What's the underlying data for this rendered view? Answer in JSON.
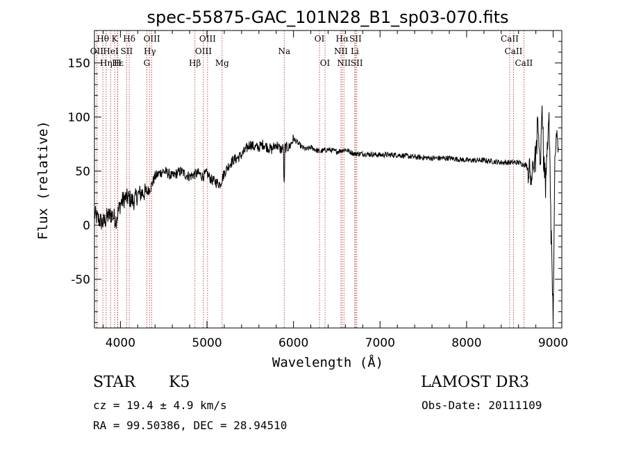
{
  "chart_data": {
    "type": "line",
    "title": "spec-55875-GAC_101N28_B1_sp03-070.fits",
    "xlabel": "Wavelength (Å)",
    "ylabel": "Flux (relative)",
    "xlim": [
      3700,
      9100
    ],
    "ylim": [
      -95,
      180
    ],
    "xticks": [
      4000,
      5000,
      6000,
      7000,
      8000,
      9000
    ],
    "yticks": [
      -50,
      0,
      50,
      100,
      150
    ],
    "spectrum_anchors": {
      "x": [
        3700,
        3750,
        3800,
        3850,
        3900,
        3950,
        4000,
        4050,
        4100,
        4150,
        4200,
        4250,
        4300,
        4350,
        4400,
        4450,
        4500,
        4550,
        4600,
        4650,
        4700,
        4750,
        4800,
        4850,
        4900,
        4950,
        5000,
        5050,
        5100,
        5150,
        5200,
        5250,
        5300,
        5350,
        5400,
        5450,
        5500,
        5550,
        5600,
        5650,
        5700,
        5750,
        5800,
        5850,
        5900,
        5950,
        6000,
        6050,
        6100,
        6150,
        6200,
        6300,
        6400,
        6500,
        6600,
        6700,
        6800,
        7000,
        7200,
        7400,
        7600,
        7800,
        8000,
        8200,
        8400,
        8600,
        8700,
        8750,
        8800,
        8830,
        8850,
        8870,
        8890,
        8910,
        8930,
        8950,
        8970,
        8990,
        9000,
        9020,
        9040,
        9060
      ],
      "y": [
        10,
        5,
        2,
        8,
        10,
        5,
        20,
        25,
        25,
        22,
        28,
        30,
        30,
        35,
        45,
        48,
        50,
        48,
        45,
        48,
        50,
        47,
        45,
        47,
        48,
        45,
        48,
        42,
        40,
        38,
        48,
        55,
        60,
        62,
        65,
        70,
        75,
        72,
        72,
        75,
        72,
        70,
        75,
        70,
        72,
        72,
        80,
        76,
        72,
        70,
        72,
        68,
        70,
        68,
        70,
        66,
        66,
        65,
        65,
        63,
        62,
        62,
        60,
        60,
        58,
        58,
        55,
        50,
        60,
        95,
        50,
        115,
        60,
        40,
        60,
        100,
        20,
        -50,
        -95,
        60,
        85,
        70
      ]
    },
    "lines": [
      {
        "label": "Hθ",
        "wl": 3797,
        "row": 0
      },
      {
        "label": "K",
        "wl": 3934,
        "row": 0
      },
      {
        "label": "Hδ",
        "wl": 4102,
        "row": 0
      },
      {
        "label": "OIII",
        "wl": 4363,
        "row": 0
      },
      {
        "label": "OIII",
        "wl": 5007,
        "row": 0
      },
      {
        "label": "OI",
        "wl": 6300,
        "row": 0
      },
      {
        "label": "Hα",
        "wl": 6563,
        "row": 0
      },
      {
        "label": "SII",
        "wl": 6716,
        "row": 0
      },
      {
        "label": "CaII",
        "wl": 8498,
        "row": 0
      },
      {
        "label": "OII",
        "wl": 3727,
        "row": 1
      },
      {
        "label": "HeI",
        "wl": 3889,
        "row": 1
      },
      {
        "label": "SII",
        "wl": 4072,
        "row": 1
      },
      {
        "label": "Hγ",
        "wl": 4340,
        "row": 1
      },
      {
        "label": "OIII",
        "wl": 4959,
        "row": 1
      },
      {
        "label": "Na",
        "wl": 5893,
        "row": 1
      },
      {
        "label": "NII",
        "wl": 6548,
        "row": 1
      },
      {
        "label": "Li",
        "wl": 6708,
        "row": 1
      },
      {
        "label": "CaII",
        "wl": 8542,
        "row": 1
      },
      {
        "label": "Hε",
        "wl": 3970,
        "row": 2
      },
      {
        "label": "Hη",
        "wl": 3835,
        "row": 2
      },
      {
        "label": "H",
        "wl": 3968,
        "row": 2
      },
      {
        "label": "G",
        "wl": 4305,
        "row": 2
      },
      {
        "label": "Hβ",
        "wl": 4861,
        "row": 2
      },
      {
        "label": "Mg",
        "wl": 5175,
        "row": 2
      },
      {
        "label": "OI",
        "wl": 6364,
        "row": 2
      },
      {
        "label": "NII",
        "wl": 6583,
        "row": 2
      },
      {
        "label": "SII",
        "wl": 6731,
        "row": 2
      },
      {
        "label": "CaII",
        "wl": 8662,
        "row": 2
      }
    ]
  },
  "info": {
    "obj_class": "STAR",
    "subclass": "K5",
    "survey": "LAMOST DR3",
    "cz": "cz = 19.4 ± 4.9 km/s",
    "obsdate": "Obs-Date: 20111109",
    "radec": "RA =  99.50386, DEC =  28.94510"
  }
}
